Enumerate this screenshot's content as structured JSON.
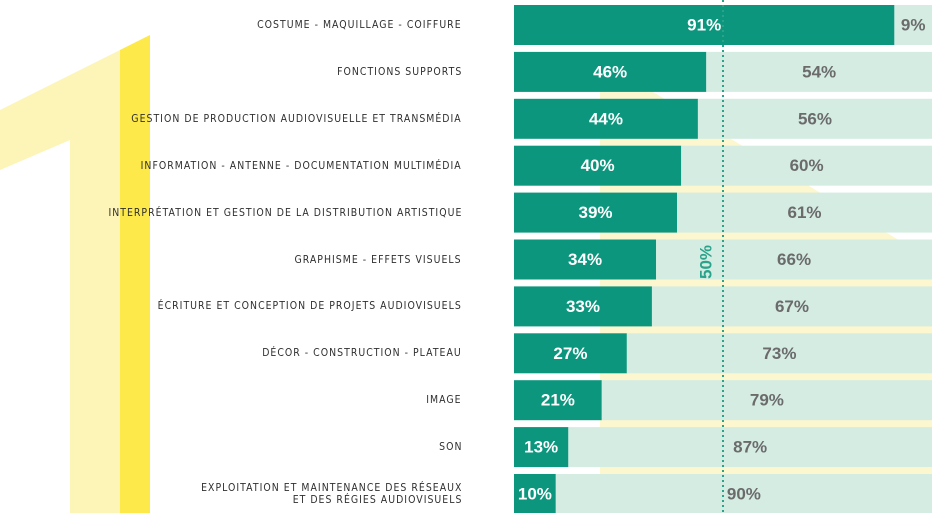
{
  "chart_data": {
    "type": "stacked_bar_horizontal",
    "categories": [
      "COSTUME - MAQUILLAGE - COIFFURE",
      "FONCTIONS SUPPORTS",
      "GESTION DE PRODUCTION AUDIOVISUELLE ET TRANSMÉDIA",
      "INFORMATION - ANTENNE - DOCUMENTATION MULTIMÉDIA",
      "INTERPRÉTATION ET GESTION DE LA DISTRIBUTION ARTISTIQUE",
      "GRAPHISME - EFFETS VISUELS",
      "ÉCRITURE ET CONCEPTION DE PROJETS AUDIOVISUELS",
      "DÉCOR - CONSTRUCTION - PLATEAU",
      "IMAGE",
      "SON",
      "EXPLOITATION ET MAINTENANCE DES RÉSEAUX\nET DES RÉGIES AUDIOVISUELS"
    ],
    "series": [
      {
        "color": "#0b967d",
        "values": [
          91,
          46,
          44,
          40,
          39,
          34,
          33,
          27,
          21,
          13,
          10
        ],
        "value_labels": [
          "91%",
          "46%",
          "44%",
          "40%",
          "39%",
          "34%",
          "33%",
          "27%",
          "21%",
          "13%",
          "10%"
        ]
      },
      {
        "color": "#d5ece3",
        "values": [
          9,
          54,
          56,
          60,
          61,
          66,
          67,
          73,
          79,
          87,
          90
        ],
        "value_labels": [
          "9%",
          "54%",
          "56%",
          "60%",
          "61%",
          "66%",
          "67%",
          "73%",
          "79%",
          "87%",
          "90%"
        ]
      }
    ],
    "xlim": [
      0,
      100
    ],
    "reference_line": {
      "value": 50,
      "label": "50%",
      "color": "#2aa38a"
    }
  }
}
